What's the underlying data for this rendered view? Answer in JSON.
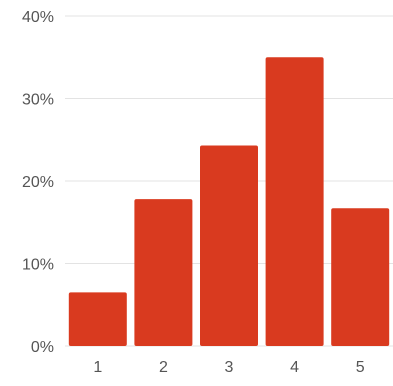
{
  "chart_data": {
    "type": "bar",
    "title": "",
    "xlabel": "",
    "ylabel": "",
    "categories": [
      "1",
      "2",
      "3",
      "4",
      "5"
    ],
    "values": [
      6.5,
      17.8,
      24.3,
      35.0,
      16.7
    ],
    "ylim": [
      0,
      40
    ],
    "yticks": [
      "0%",
      "10%",
      "20%",
      "30%",
      "40%"
    ],
    "grid": true,
    "legend": "none",
    "bar_color": "#d93a1f",
    "grid_color": "#e3e3e3",
    "axis_color": "#cccccc"
  }
}
